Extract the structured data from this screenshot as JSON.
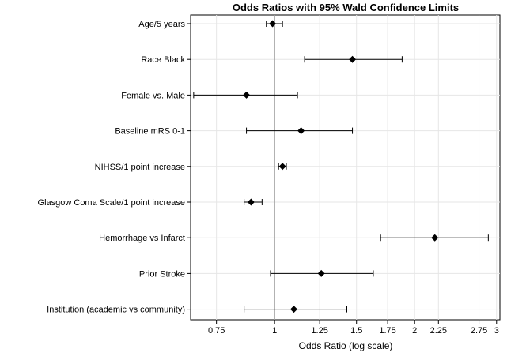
{
  "chart_data": {
    "type": "forest",
    "title": "Odds Ratios with 95% Wald Confidence Limits",
    "xlabel": "Odds Ratio (log scale)",
    "x_scale": "log",
    "xlim": [
      0.66,
      3.05
    ],
    "x_ticks": [
      0.75,
      1,
      1.25,
      1.5,
      1.75,
      2,
      2.25,
      2.75,
      3
    ],
    "x_tick_labels": [
      "0.75",
      "1",
      "1.25",
      "1.5",
      "1.75",
      "2",
      "2.25",
      "2.75",
      "3"
    ],
    "reference_line": 1,
    "rows": [
      {
        "label": "Age/5 years",
        "or": 0.99,
        "lower": 0.96,
        "upper": 1.04
      },
      {
        "label": "Race Black",
        "or": 1.47,
        "lower": 1.16,
        "upper": 1.88
      },
      {
        "label": "Female vs. Male",
        "or": 0.87,
        "lower": 0.67,
        "upper": 1.12
      },
      {
        "label": "Baseline mRS 0-1",
        "or": 1.14,
        "lower": 0.87,
        "upper": 1.47
      },
      {
        "label": "NIHSS/1 point increase",
        "or": 1.04,
        "lower": 1.02,
        "upper": 1.06
      },
      {
        "label": "Glasgow Coma Scale/1 point increase",
        "or": 0.89,
        "lower": 0.86,
        "upper": 0.94
      },
      {
        "label": "Hemorrhage vs Infarct",
        "or": 2.21,
        "lower": 1.69,
        "upper": 2.88
      },
      {
        "label": "Prior Stroke",
        "or": 1.26,
        "lower": 0.98,
        "upper": 1.63
      },
      {
        "label": "Institution (academic vs community)",
        "or": 1.1,
        "lower": 0.86,
        "upper": 1.43
      }
    ],
    "grid": true
  }
}
